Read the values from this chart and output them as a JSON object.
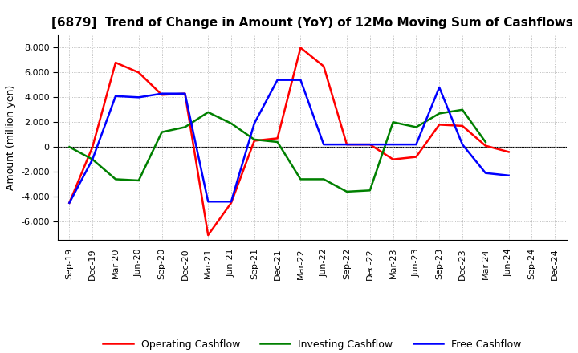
{
  "title": "[6879]  Trend of Change in Amount (YoY) of 12Mo Moving Sum of Cashflows",
  "ylabel": "Amount (million yen)",
  "x_labels": [
    "Sep-19",
    "Dec-19",
    "Mar-20",
    "Jun-20",
    "Sep-20",
    "Dec-20",
    "Mar-21",
    "Jun-21",
    "Sep-21",
    "Dec-21",
    "Mar-22",
    "Jun-22",
    "Sep-22",
    "Dec-22",
    "Mar-23",
    "Jun-23",
    "Sep-23",
    "Dec-23",
    "Mar-24",
    "Jun-24",
    "Sep-24",
    "Dec-24"
  ],
  "operating": [
    -4500,
    0,
    6800,
    6000,
    4200,
    4300,
    -7100,
    -4500,
    500,
    700,
    8000,
    6500,
    200,
    200,
    -1000,
    -800,
    1800,
    1700,
    100,
    -400,
    null,
    null
  ],
  "investing": [
    0,
    -1000,
    -2600,
    -2700,
    1200,
    1600,
    2800,
    1900,
    600,
    400,
    -2600,
    -2600,
    -3600,
    -3500,
    2000,
    1600,
    2700,
    3000,
    400,
    null,
    null,
    null
  ],
  "free": [
    -4500,
    -1000,
    4100,
    4000,
    4300,
    4300,
    -4400,
    -4400,
    1900,
    5400,
    5400,
    200,
    200,
    200,
    200,
    200,
    4800,
    200,
    -2100,
    -2300,
    null,
    null
  ],
  "operating_color": "#ff0000",
  "investing_color": "#008000",
  "free_color": "#0000ff",
  "ylim": [
    -7500,
    9000
  ],
  "yticks": [
    -6000,
    -4000,
    -2000,
    0,
    2000,
    4000,
    6000,
    8000
  ],
  "bg_color": "#ffffff",
  "grid_color": "#b0b0b0",
  "title_fontsize": 11,
  "label_fontsize": 8,
  "legend_fontsize": 9
}
